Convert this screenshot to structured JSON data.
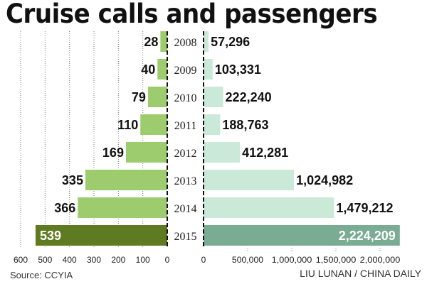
{
  "title": "Cruise calls and passengers",
  "source": "Source: CCYIA",
  "credit": "LIU LUNAN / CHINA DAILY",
  "chart_data": [
    {
      "type": "bar",
      "orientation": "horizontal",
      "direction": "leftward",
      "categories": [
        "2008",
        "2009",
        "2010",
        "2011",
        "2012",
        "2013",
        "2014",
        "2015"
      ],
      "values": [
        28,
        40,
        79,
        110,
        169,
        335,
        366,
        539
      ],
      "data_labels": [
        "28",
        "40",
        "79",
        "110",
        "169",
        "335",
        "366",
        "539"
      ],
      "xlim": [
        0,
        600
      ],
      "ticks": [
        600,
        500,
        400,
        300,
        200,
        100,
        0
      ],
      "tick_labels": [
        "600",
        "500",
        "400",
        "300",
        "200",
        "100",
        "0"
      ],
      "grid": true,
      "colors": {
        "bar": "#9dcc6f",
        "highlight": "#5f7b22"
      }
    },
    {
      "type": "bar",
      "orientation": "horizontal",
      "categories": [
        "2008",
        "2009",
        "2010",
        "2011",
        "2012",
        "2013",
        "2014",
        "2015"
      ],
      "values": [
        57296,
        103331,
        222240,
        188763,
        412281,
        1024982,
        1479212,
        2224209
      ],
      "data_labels": [
        "57,296",
        "103,331",
        "222,240",
        "188,763",
        "412,281",
        "1,024,982",
        "1,479,212",
        "2,224,209"
      ],
      "xlim": [
        0,
        2300000
      ],
      "ticks": [
        0,
        500000,
        1000000,
        1500000,
        2000000
      ],
      "tick_labels": [
        "0",
        "500,000",
        "1,000,000",
        "1,500,000",
        "2,000,000"
      ],
      "grid": false,
      "colors": {
        "bar": "#cbe9d8",
        "highlight": "#7aab93"
      }
    }
  ]
}
